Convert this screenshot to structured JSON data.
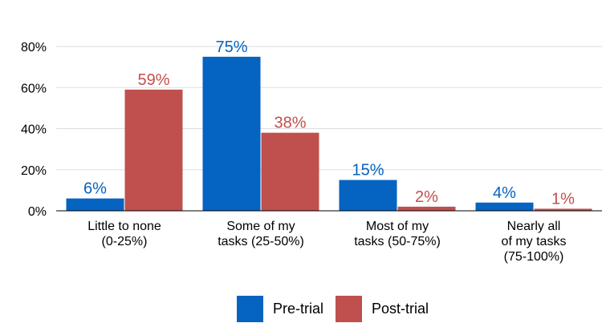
{
  "chart_data": {
    "type": "bar",
    "categories": [
      [
        "Little to none",
        "(0-25%)"
      ],
      [
        "Some of my",
        "tasks (25-50%)"
      ],
      [
        "Most of my",
        "tasks (50-75%)"
      ],
      [
        "Nearly all",
        "of my tasks",
        "(75-100%)"
      ]
    ],
    "series": [
      {
        "name": "Pre-trial",
        "color": "#0563C1",
        "values": [
          6,
          75,
          15,
          4
        ],
        "labels": [
          "6%",
          "75%",
          "15%",
          "4%"
        ]
      },
      {
        "name": "Post-trial",
        "color": "#C0504D",
        "values": [
          59,
          38,
          2,
          1
        ],
        "labels": [
          "59%",
          "38%",
          "2%",
          "1%"
        ]
      }
    ],
    "ylim": [
      0,
      80
    ],
    "yticks": [
      0,
      20,
      40,
      60,
      80
    ],
    "ytick_labels": [
      "0%",
      "20%",
      "40%",
      "60%",
      "80%"
    ],
    "grid": true,
    "legend_position": "bottom",
    "title": "",
    "xlabel": "",
    "ylabel": ""
  }
}
